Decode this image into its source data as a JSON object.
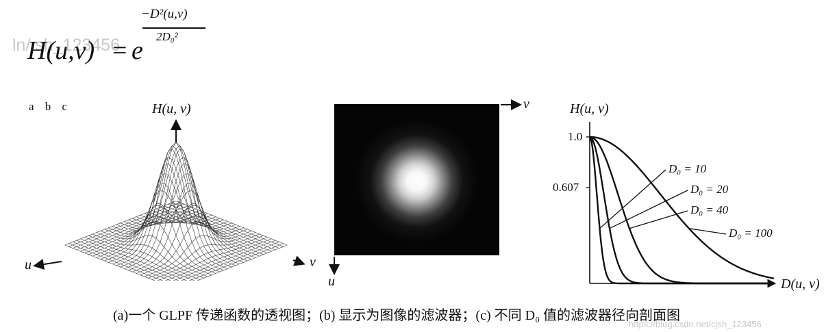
{
  "watermark_top": "ln/        sh_123456",
  "watermark_bottom": "https://blog.csdn.net/cjsh_123456",
  "formula": {
    "lhs": "H(u,v)",
    "equals": "=",
    "base": "e",
    "numerator": "−D²(u,v)",
    "denominator": "2D₀²"
  },
  "panel_labels": "a b c",
  "panel_a": {
    "axis_h": "H(u, v)",
    "axis_u": "u",
    "axis_v": "v"
  },
  "panel_b": {
    "axis_v": "v",
    "axis_u": "u"
  },
  "panel_c": {
    "axis_y": "H(u, v)",
    "axis_x": "D(u, v)",
    "ytick_1": "1.0",
    "ytick_2": "0.607"
  },
  "chart_data": {
    "type": "line",
    "xlabel": "D(u, v)",
    "ylabel": "H(u, v)",
    "yticks": [
      1.0,
      0.607
    ],
    "ylim": [
      0,
      1.0
    ],
    "xlim": [
      0,
      260
    ],
    "series": [
      {
        "name": "D₀ = 10",
        "sigma": 10
      },
      {
        "name": "D₀ = 20",
        "sigma": 20
      },
      {
        "name": "D₀ = 40",
        "sigma": 40
      },
      {
        "name": "D₀ = 100",
        "sigma": 100
      }
    ]
  },
  "caption": "(a)一个 GLPF 传递函数的透视图；(b) 显示为图像的滤波器；(c) 不同 D₀ 值的滤波器径向剖面图"
}
